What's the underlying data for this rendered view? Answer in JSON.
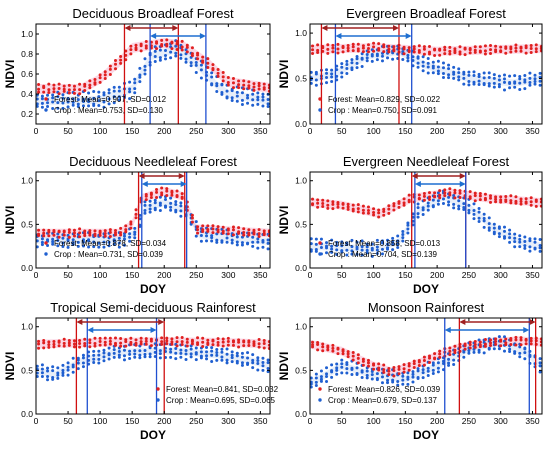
{
  "colors": {
    "forest": "#e02020",
    "crop": "#1f5fd0",
    "forest_band": "#f7b6cf",
    "crop_band": "#b9cfee",
    "vline_forest": "#d01010",
    "vline_crop": "#1f4fd0",
    "arrow_forest": "#a02020",
    "arrow_crop": "#1f6fd0"
  },
  "chart_data": [
    {
      "type": "scatter",
      "title": "Deciduous Broadleaf Forest",
      "xlabel": "",
      "ylabel": "NDVI",
      "xlim": [
        0,
        365
      ],
      "ylim": [
        0.1,
        1.1
      ],
      "xticks": [
        0,
        50,
        100,
        150,
        200,
        250,
        300,
        350
      ],
      "yticks": [
        0.2,
        0.4,
        0.6,
        0.8,
        1.0
      ],
      "ytick_labels": [
        "0.2",
        "0.4",
        "0.6",
        "0.8",
        "1.0"
      ],
      "legend_position": "bottom-left",
      "series": [
        {
          "name": "Forest",
          "stat_label": "Forest: Mean=0.907, SD=0.012",
          "profile": {
            "days": [
              0,
              70,
              100,
              130,
              150,
              200,
              230,
              270,
              300,
              365
            ],
            "values": [
              0.45,
              0.45,
              0.55,
              0.72,
              0.86,
              0.91,
              0.88,
              0.7,
              0.52,
              0.46
            ]
          }
        },
        {
          "name": "Crop",
          "stat_label": "Crop  : Mean=0.753, SD=0.130",
          "profile": {
            "days": [
              0,
              100,
              150,
              180,
              220,
              250,
              280,
              300,
              365
            ],
            "values": [
              0.33,
              0.34,
              0.45,
              0.78,
              0.85,
              0.7,
              0.5,
              0.4,
              0.33
            ]
          }
        }
      ],
      "vlines": {
        "forest": [
          138,
          222
        ],
        "crop": [
          178,
          265
        ]
      },
      "arrows": {
        "forest": [
          138,
          222
        ],
        "crop": [
          178,
          265
        ]
      }
    },
    {
      "type": "scatter",
      "title": "Evergreen Broadleaf Forest",
      "xlabel": "",
      "ylabel": "NDVI",
      "xlim": [
        0,
        365
      ],
      "ylim": [
        0.0,
        1.1
      ],
      "xticks": [
        0,
        50,
        100,
        150,
        200,
        250,
        300,
        350
      ],
      "yticks": [
        0.0,
        0.5,
        1.0
      ],
      "ytick_labels": [
        "0.0",
        "0.5",
        "1.0"
      ],
      "legend_position": "bottom-left",
      "series": [
        {
          "name": "Forest",
          "stat_label": "Forest: Mean=0.829, SD=0.022",
          "profile": {
            "days": [
              0,
              100,
              200,
              300,
              365
            ],
            "values": [
              0.82,
              0.84,
              0.8,
              0.82,
              0.83
            ]
          }
        },
        {
          "name": "Crop",
          "stat_label": "Crop  : Mean=0.750, SD=0.091",
          "profile": {
            "days": [
              0,
              40,
              90,
              140,
              180,
              250,
              320,
              365
            ],
            "values": [
              0.5,
              0.55,
              0.75,
              0.8,
              0.65,
              0.5,
              0.45,
              0.5
            ]
          }
        }
      ],
      "vlines": {
        "forest": [
          18,
          140
        ],
        "crop": [
          40,
          160
        ]
      },
      "arrows": {
        "forest": [
          18,
          140
        ],
        "crop": [
          40,
          160
        ]
      }
    },
    {
      "type": "scatter",
      "title": "Deciduous Needleleaf Forest",
      "xlabel": "DOY",
      "ylabel": "NDVI",
      "xlim": [
        0,
        365
      ],
      "ylim": [
        0.0,
        1.1
      ],
      "xticks": [
        0,
        50,
        100,
        150,
        200,
        250,
        300,
        350
      ],
      "yticks": [
        0.0,
        0.5,
        1.0
      ],
      "ytick_labels": [
        "0.0",
        "0.5",
        "1.0"
      ],
      "legend_position": "bottom-left",
      "series": [
        {
          "name": "Forest",
          "stat_label": "Forest: Mean=0.878, SD=0.034",
          "profile": {
            "days": [
              0,
              130,
              150,
              165,
              200,
              230,
              250,
              365
            ],
            "values": [
              0.4,
              0.4,
              0.5,
              0.8,
              0.88,
              0.82,
              0.45,
              0.4
            ]
          }
        },
        {
          "name": "Crop",
          "stat_label": "Crop  : Mean=0.731, SD=0.039",
          "profile": {
            "days": [
              0,
              130,
              155,
              170,
              200,
              235,
              255,
              365
            ],
            "values": [
              0.32,
              0.32,
              0.4,
              0.68,
              0.75,
              0.65,
              0.38,
              0.3
            ]
          }
        }
      ],
      "vlines": {
        "forest": [
          160,
          232
        ],
        "crop": [
          165,
          235
        ]
      },
      "arrows": {
        "forest": [
          160,
          232
        ],
        "crop": [
          165,
          235
        ]
      }
    },
    {
      "type": "scatter",
      "title": "Evergreen Needleleaf Forest",
      "xlabel": "DOY",
      "ylabel": "NDVI",
      "xlim": [
        0,
        365
      ],
      "ylim": [
        0.0,
        1.1
      ],
      "xticks": [
        0,
        50,
        100,
        150,
        200,
        250,
        300,
        350
      ],
      "yticks": [
        0.0,
        0.5,
        1.0
      ],
      "ytick_labels": [
        "0.0",
        "0.5",
        "1.0"
      ],
      "legend_position": "bottom-left",
      "series": [
        {
          "name": "Forest",
          "stat_label": "Forest: Mean=0.858, SD=0.013",
          "profile": {
            "days": [
              0,
              50,
              110,
              160,
              220,
              280,
              365
            ],
            "values": [
              0.75,
              0.72,
              0.62,
              0.8,
              0.86,
              0.8,
              0.75
            ]
          }
        },
        {
          "name": "Crop",
          "stat_label": "Crop  : Mean=0.704, SD=0.139",
          "profile": {
            "days": [
              0,
              100,
              140,
              170,
              210,
              250,
              290,
              330,
              365
            ],
            "values": [
              0.25,
              0.22,
              0.3,
              0.65,
              0.82,
              0.7,
              0.45,
              0.3,
              0.25
            ]
          }
        }
      ],
      "vlines": {
        "forest": [
          160,
          245
        ],
        "crop": [
          165,
          245
        ]
      },
      "arrows": {
        "forest": [
          160,
          245
        ],
        "crop": [
          165,
          245
        ]
      }
    },
    {
      "type": "scatter",
      "title": "Tropical Semi-deciduous Rainforest",
      "xlabel": "DOY",
      "ylabel": "NDVI",
      "xlim": [
        0,
        365
      ],
      "ylim": [
        0.0,
        1.1
      ],
      "xticks": [
        0,
        50,
        100,
        150,
        200,
        250,
        300,
        350
      ],
      "yticks": [
        0.0,
        0.5,
        1.0
      ],
      "ytick_labels": [
        "0.0",
        "0.5",
        "1.0"
      ],
      "legend_position": "bottom-right",
      "series": [
        {
          "name": "Forest",
          "stat_label": "Forest: Mean=0.841, SD=0.032",
          "profile": {
            "days": [
              0,
              100,
              200,
              300,
              365
            ],
            "values": [
              0.8,
              0.82,
              0.83,
              0.82,
              0.8
            ]
          }
        },
        {
          "name": "Crop",
          "stat_label": "Crop  : Mean=0.695, SD=0.065",
          "profile": {
            "days": [
              0,
              30,
              70,
              120,
              170,
              220,
              280,
              330,
              365
            ],
            "values": [
              0.5,
              0.45,
              0.6,
              0.7,
              0.72,
              0.72,
              0.68,
              0.62,
              0.55
            ]
          }
        }
      ],
      "vlines": {
        "forest": [
          63,
          200
        ],
        "crop": [
          80,
          188
        ]
      },
      "arrows": {
        "forest": [
          63,
          200
        ],
        "crop": [
          80,
          188
        ]
      }
    },
    {
      "type": "scatter",
      "title": "Monsoon Rainforest",
      "xlabel": "DOY",
      "ylabel": "NDVI",
      "xlim": [
        0,
        365
      ],
      "ylim": [
        0.0,
        1.1
      ],
      "xticks": [
        0,
        50,
        100,
        150,
        200,
        250,
        300,
        350
      ],
      "yticks": [
        0.0,
        0.5,
        1.0
      ],
      "ytick_labels": [
        "0.0",
        "0.5",
        "1.0"
      ],
      "legend_position": "bottom-left",
      "series": [
        {
          "name": "Forest",
          "stat_label": "Forest: Mean=0.826, SD=0.039",
          "profile": {
            "days": [
              0,
              50,
              100,
              130,
              170,
              230,
              280,
              330,
              365
            ],
            "values": [
              0.8,
              0.72,
              0.55,
              0.48,
              0.58,
              0.75,
              0.82,
              0.84,
              0.82
            ]
          }
        },
        {
          "name": "Crop",
          "stat_label": "Crop  : Mean=0.679, SD=0.137",
          "profile": {
            "days": [
              0,
              50,
              100,
              150,
              200,
              250,
              300,
              340,
              365
            ],
            "values": [
              0.35,
              0.55,
              0.45,
              0.4,
              0.55,
              0.75,
              0.82,
              0.7,
              0.55
            ]
          }
        }
      ],
      "vlines": {
        "forest": [
          235,
          355
        ],
        "crop": [
          212,
          345
        ]
      },
      "arrows": {
        "forest": [
          235,
          355
        ],
        "crop": [
          212,
          345
        ]
      }
    }
  ]
}
